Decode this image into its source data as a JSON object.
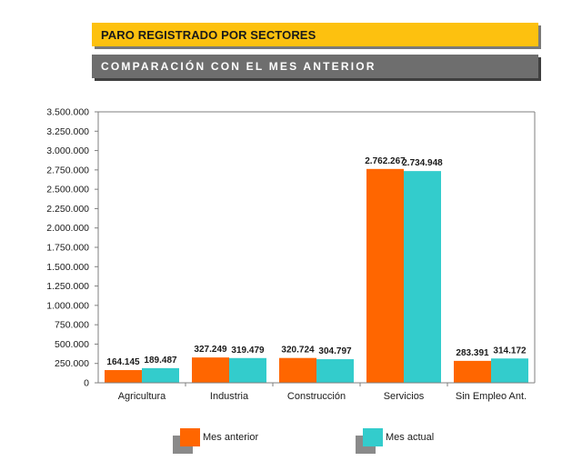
{
  "header": {
    "title": "PARO REGISTRADO POR SECTORES",
    "subtitle": "COMPARACIÓN CON EL MES ANTERIOR"
  },
  "colors": {
    "banner_title_bg": "#FDC10F",
    "banner_sub_bg": "#6E6E6E",
    "series_anterior": "#FF6600",
    "series_actual": "#33CCCC"
  },
  "chart_data": {
    "type": "bar",
    "title": "",
    "xlabel": "",
    "ylabel": "",
    "ylim": [
      0,
      3500000
    ],
    "grid": false,
    "legend": "bottom",
    "categories": [
      "Agricultura",
      "Industria",
      "Construcción",
      "Servicios",
      "Sin Empleo Ant."
    ],
    "series": [
      {
        "name": "Mes anterior",
        "values": [
          164145,
          327249,
          320724,
          2762267,
          283391
        ],
        "labels": [
          "164.145",
          "327.249",
          "320.724",
          "2.762.267",
          "283.391"
        ]
      },
      {
        "name": "Mes actual",
        "values": [
          189487,
          319479,
          304797,
          2734948,
          314172
        ],
        "labels": [
          "189.487",
          "319.479",
          "304.797",
          "2.734.948",
          "314.172"
        ]
      }
    ],
    "yticks": [
      0,
      250000,
      500000,
      750000,
      1000000,
      1250000,
      1500000,
      1750000,
      2000000,
      2250000,
      2500000,
      2750000,
      3000000,
      3250000,
      3500000
    ],
    "ytick_labels": [
      "0",
      "250.000",
      "500.000",
      "750.000",
      "1.000.000",
      "1.250.000",
      "1.500.000",
      "1.750.000",
      "2.000.000",
      "2.250.000",
      "2.500.000",
      "2.750.000",
      "3.000.000",
      "3.250.000",
      "3.500.000"
    ]
  },
  "legend": {
    "items": [
      {
        "label": "Mes anterior"
      },
      {
        "label": "Mes actual"
      }
    ]
  }
}
